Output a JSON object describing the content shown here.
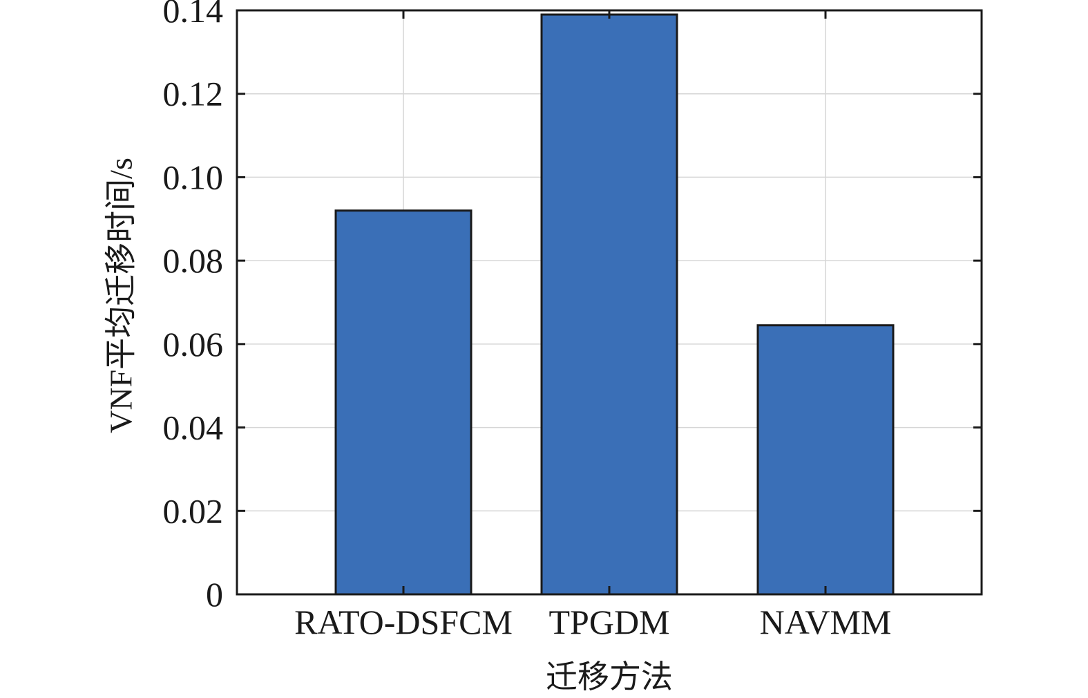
{
  "chart_data": {
    "type": "bar",
    "categories": [
      "RATO-DSFCM",
      "TPGDM",
      "NAVMM"
    ],
    "values": [
      0.092,
      0.139,
      0.0645
    ],
    "xlabel": "迁移方法",
    "ylabel": "VNF平均迁移时间/s",
    "ylim": [
      0,
      0.14
    ],
    "yticks": [
      0,
      0.02,
      0.04,
      0.06,
      0.08,
      0.1,
      0.12,
      0.14
    ],
    "ytick_labels": [
      "0",
      "0.02",
      "0.04",
      "0.06",
      "0.08",
      "0.10",
      "0.12",
      "0.14"
    ],
    "grid": true,
    "legend": "none",
    "bar_color": "#3a6fb7",
    "edge_color": "#1a1a1a"
  }
}
